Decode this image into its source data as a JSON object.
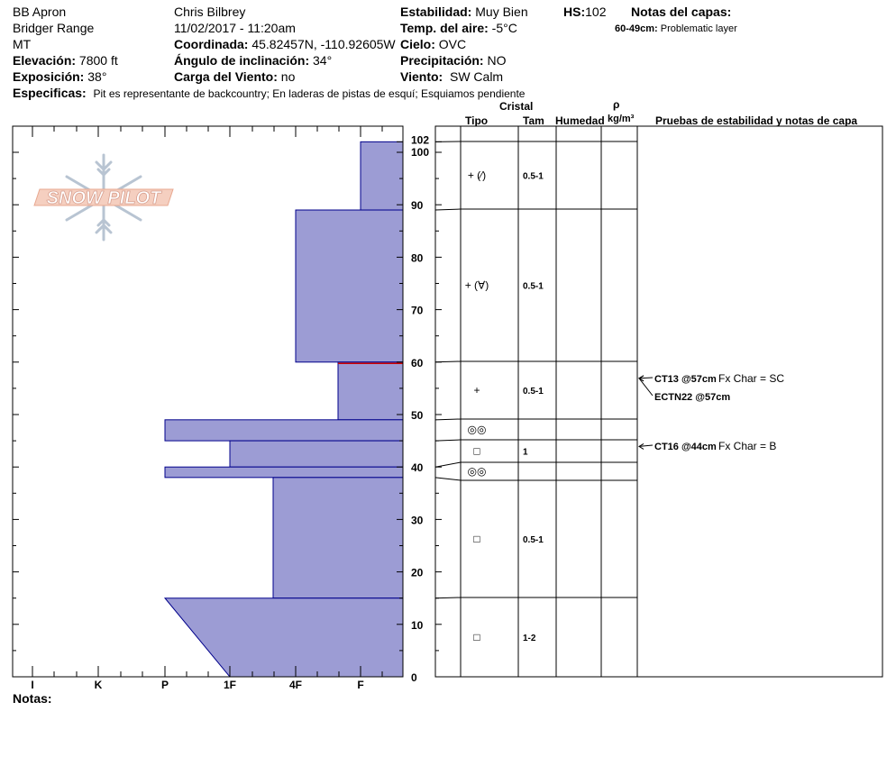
{
  "header": {
    "location": "BB Apron",
    "range": "Bridger Range",
    "state": "MT",
    "elevation_label": "Elevación:",
    "elevation": "7800 ft",
    "aspect_label": "Exposición:",
    "aspect": "38°",
    "observer": "Chris Bilbrey",
    "datetime": "11/02/2017 - 11:20am",
    "coord_label": "Coordinada:",
    "coord": "45.82457N, -110.92605W",
    "angle_label": "Ángulo de inclinación:",
    "angle": "34°",
    "wind_load_label": "Carga del Viento:",
    "wind_load": "no",
    "stability_label": "Estabilidad:",
    "stability": "Muy Bien",
    "air_temp_label": "Temp. del aire:",
    "air_temp": "-5°C",
    "sky_label": "Cielo:",
    "sky": "OVC",
    "precip_label": "Precipitación:",
    "precip": "NO",
    "wind_label": "Viento:",
    "wind": "SW Calm",
    "hs_label": "HS:",
    "hs": "102",
    "layer_notes_label": "Notas del capas:",
    "layer_note_range": "60-49cm:",
    "layer_note_text": "Problematic layer",
    "specifics_label": "Especificas:",
    "specifics": "Pit es representante de backcountry; En laderas de pistas de esquí; Esquiamos pendiente"
  },
  "logo_text": "SNOW PILOT",
  "table_headers": {
    "crystal": "Cristal",
    "type": "Tipo",
    "size": "Tam",
    "moisture": "Humedad",
    "rho": "ρ",
    "density_unit": "kg/m³",
    "tests": "Pruebas de estabilidad y notas de capa"
  },
  "notes_label": "Notas:",
  "colors": {
    "fill": "#9c9cd4",
    "edge": "#00008b",
    "problem_line": "#cc0000"
  },
  "chart_data": {
    "type": "bar",
    "orientation": "horizontal",
    "y_axis": {
      "label": "",
      "unit": "cm",
      "range": [
        0,
        102
      ],
      "ticks": [
        "0",
        "10",
        "20",
        "30",
        "40",
        "50",
        "60",
        "70",
        "80",
        "90",
        "100",
        "102"
      ]
    },
    "x_axis": {
      "label": "",
      "categories": [
        "I",
        "K",
        "P",
        "1F",
        "4F",
        "F"
      ]
    },
    "layers": [
      {
        "top": 102,
        "bottom": 89,
        "hardness": "F",
        "type": "+ (⁄)",
        "size": "0.5-1"
      },
      {
        "top": 89,
        "bottom": 60,
        "hardness": "4F",
        "type": "+ (∀)",
        "size": "0.5-1"
      },
      {
        "top": 60,
        "bottom": 49,
        "hardness": "F+",
        "type": "+",
        "size": "0.5-1"
      },
      {
        "top": 49,
        "bottom": 45,
        "hardness": "P",
        "type": "◎◎",
        "size": ""
      },
      {
        "top": 45,
        "bottom": 40,
        "hardness": "1F+",
        "type": "□",
        "size": "1"
      },
      {
        "top": 40,
        "bottom": 38,
        "hardness": "P",
        "type": "◎◎",
        "size": ""
      },
      {
        "top": 38,
        "bottom": 15,
        "hardness": "4F-",
        "type": "□",
        "size": "0.5-1"
      },
      {
        "top": 15,
        "bottom": 0,
        "hardness": "P→1F",
        "type": "□",
        "size": "1-2"
      }
    ],
    "problem_layer_depth": 60,
    "stability_tests": [
      {
        "depth": 57,
        "label": "CT13 @57cm",
        "extra": "Fx Char = SC"
      },
      {
        "depth": 57,
        "label": "ECTN22 @57cm",
        "extra": ""
      },
      {
        "depth": 44,
        "label": "CT16 @44cm",
        "extra": "Fx Char = B"
      }
    ]
  }
}
